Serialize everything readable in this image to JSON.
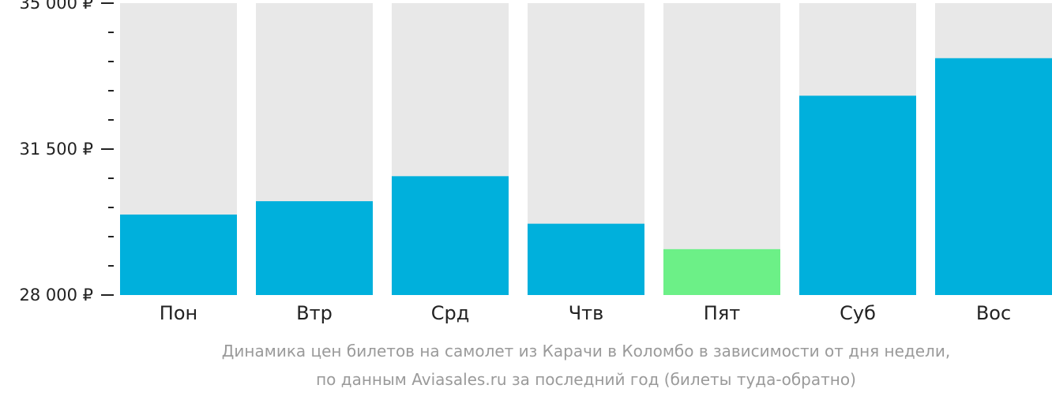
{
  "chart_data": {
    "type": "bar",
    "categories": [
      "Пон",
      "Втр",
      "Срд",
      "Чтв",
      "Пят",
      "Суб",
      "Вос"
    ],
    "values": [
      29930,
      30250,
      30850,
      29710,
      29100,
      32780,
      33680
    ],
    "ylim": [
      28000,
      35000
    ],
    "yticks": [
      {
        "value": 28000,
        "label": "28 000 ₽"
      },
      {
        "value": 31500,
        "label": "31 500 ₽"
      },
      {
        "value": 35000,
        "label": "35 000 ₽"
      }
    ],
    "minor_tick_step": 700,
    "highlight_index": 4,
    "caption": [
      "Динамика цен билетов на самолет из Карачи в Коломбо в зависимости от дня недели,",
      "по данным Aviasales.ru за последний год (билеты туда-обратно)"
    ],
    "grid": false,
    "legend": "none"
  },
  "colors": {
    "bar": "#00b0dc",
    "highlight": "#6cf087",
    "background_bar": "#e8e8e8",
    "axis": "#222222",
    "caption": "#9a9a9a"
  }
}
